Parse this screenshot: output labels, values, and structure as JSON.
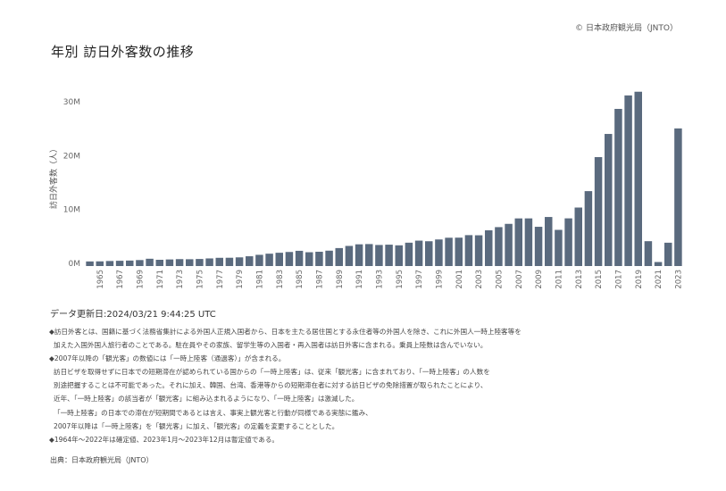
{
  "header": {
    "copyright": "© 日本政府観光局（JNTO）",
    "title": "年別 訪日外客数の推移"
  },
  "chart_data": {
    "type": "bar",
    "title": "年別 訪日外客数の推移",
    "ylabel": "訪日外客数（人）",
    "xlabel": "",
    "ylim": [
      -500000,
      33000000
    ],
    "yticks": [
      0,
      10000000,
      20000000,
      30000000
    ],
    "ytick_labels": [
      "0M",
      "10M",
      "20M",
      "30M"
    ],
    "grid": false,
    "bar_color": "#5a6a7e",
    "categories": [
      "1964",
      "1965",
      "1966",
      "1967",
      "1968",
      "1969",
      "1970",
      "1971",
      "1972",
      "1973",
      "1974",
      "1975",
      "1976",
      "1977",
      "1978",
      "1979",
      "1980",
      "1981",
      "1982",
      "1983",
      "1984",
      "1985",
      "1986",
      "1987",
      "1988",
      "1989",
      "1990",
      "1991",
      "1992",
      "1993",
      "1994",
      "1995",
      "1996",
      "1997",
      "1998",
      "1999",
      "2000",
      "2001",
      "2002",
      "2003",
      "2004",
      "2005",
      "2006",
      "2007",
      "2008",
      "2009",
      "2010",
      "2011",
      "2012",
      "2013",
      "2014",
      "2015",
      "2016",
      "2017",
      "2018",
      "2019",
      "2020",
      "2021",
      "2022",
      "2023"
    ],
    "x_tick_labels": [
      "1965",
      "1967",
      "1969",
      "1971",
      "1973",
      "1975",
      "1977",
      "1979",
      "1981",
      "1983",
      "1985",
      "1987",
      "1989",
      "1991",
      "1993",
      "1995",
      "1997",
      "1999",
      "2001",
      "2003",
      "2005",
      "2007",
      "2009",
      "2011",
      "2013",
      "2015",
      "2017",
      "2019",
      "2021",
      "2023"
    ],
    "values": [
      352832,
      366649,
      432937,
      476771,
      519004,
      608741,
      854419,
      660715,
      723744,
      784691,
      764246,
      811672,
      914772,
      1028140,
      1038875,
      1112606,
      1316632,
      1583043,
      1793164,
      1968461,
      2110346,
      2327047,
      2061526,
      2154864,
      2355412,
      2835064,
      3235860,
      3532651,
      3581540,
      3409977,
      3468055,
      3345274,
      3837113,
      4218208,
      4106057,
      4437863,
      4757146,
      4771555,
      5238963,
      5211725,
      6137905,
      6727926,
      7334077,
      8346969,
      8350835,
      6789658,
      8611175,
      6218752,
      8358105,
      10363904,
      13413467,
      19737409,
      24039700,
      28691073,
      31191856,
      31882049,
      4115828,
      245862,
      3832110,
      25066350
    ]
  },
  "updated": "データ更新日:2024/03/21 9:44:25 UTC",
  "notes": [
    "◆訪日外客とは、国籍に基づく法務省集計による外国人正規入国者から、日本を主たる居住国とする永住者等の外国人を除き、これに外国人一時上陸客等を",
    "加えた入国外国人旅行者のことである。駐在員やその家族、留学生等の入国者・再入国者は訪日外客に含まれる。乗員上陸数は含んでいない。",
    "◆2007年以降の「観光客」の数値には「一時上陸客（通過客）」が含まれる。",
    "訪日ビザを取得せずに日本での短期滞在が認められている国からの「一時上陸客」は、従来「観光客」に含まれており、「一時上陸客」の人数を",
    "別途把握することは不可能であった。それに加え、韓国、台湾、香港等からの短期滞在者に対する訪日ビザの免除措置が取られたことにより、",
    "近年、「一時上陸客」の該当者が「観光客」に組み込まれるようになり、「一時上陸客」は激減した。",
    "「一時上陸客」の日本での滞在が短期間であるとは言え、事実上観光客と行動が同様である実態に鑑み、",
    "2007年以降は「一時上陸客」を「観光客」に加え、「観光客」の定義を変更することとした。",
    "◆1964年～2022年は確定値、2023年1月～2023年12月は暫定値である。"
  ],
  "source": "出典：日本政府観光局（JNTO）"
}
